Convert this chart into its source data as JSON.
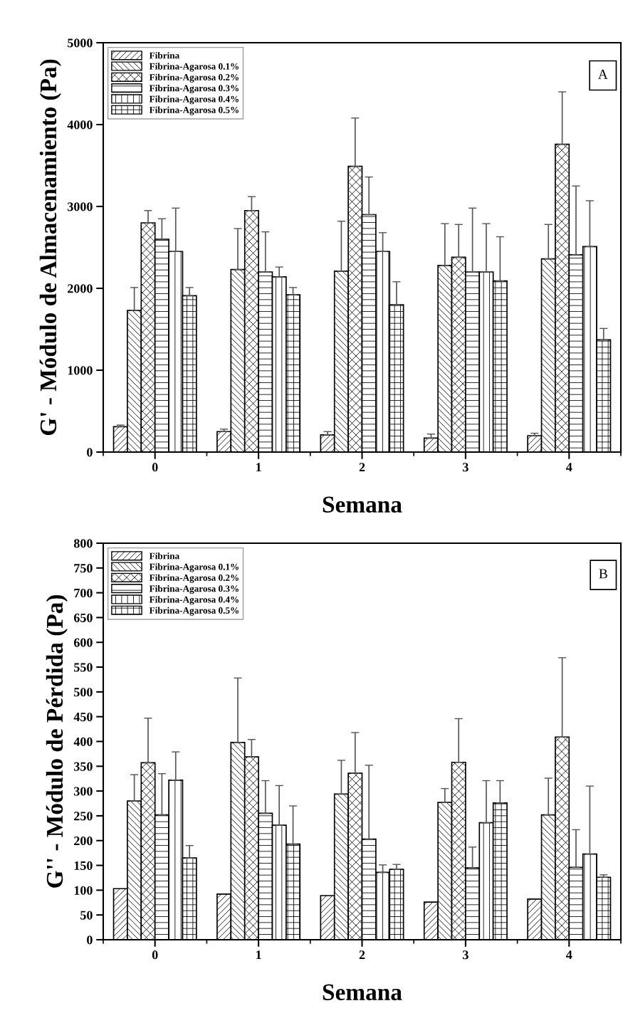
{
  "chart_data": [
    {
      "type": "bar",
      "ylabel": "G' - Módulo de Almacenamiento (Pa)",
      "xlabel": "Semana",
      "categories": [
        "0",
        "1",
        "2",
        "3",
        "4"
      ],
      "ylim": [
        0,
        5000
      ],
      "yticks": [
        0,
        1000,
        2000,
        3000,
        4000,
        5000
      ],
      "legend": "top left",
      "annotations": [
        "A"
      ],
      "series": [
        {
          "name": "Fibrina",
          "color": "#000000",
          "values": [
            310,
            250,
            210,
            170,
            200
          ],
          "errors": [
            [
              310,
              330
            ],
            [
              250,
              280
            ],
            [
              210,
              250
            ],
            [
              170,
              220
            ],
            [
              200,
              230
            ]
          ]
        },
        {
          "name": "Fibrina-Agarosa 0.1%",
          "color": "#000000",
          "values": [
            1730,
            2230,
            2210,
            2280,
            2360
          ],
          "errors": [
            [
              1730,
              2010
            ],
            [
              2230,
              2730
            ],
            [
              2210,
              2820
            ],
            [
              2280,
              2790
            ],
            [
              2360,
              2780
            ]
          ]
        },
        {
          "name": "Fibrina-Agarosa 0.2%",
          "color": "#000000",
          "values": [
            2800,
            2950,
            3490,
            2380,
            3760
          ],
          "errors": [
            [
              2800,
              2950
            ],
            [
              2950,
              3120
            ],
            [
              3490,
              4080
            ],
            [
              2380,
              2780
            ],
            [
              3760,
              4400
            ]
          ]
        },
        {
          "name": "Fibrina-Agarosa 0.3%",
          "color": "#000000",
          "values": [
            2600,
            2200,
            2900,
            2200,
            2410
          ],
          "errors": [
            [
              2600,
              2850
            ],
            [
              2200,
              2690
            ],
            [
              2900,
              3360
            ],
            [
              2200,
              2980
            ],
            [
              2410,
              3250
            ]
          ]
        },
        {
          "name": "Fibrina-Agarosa 0.4%",
          "color": "#000000",
          "values": [
            2450,
            2140,
            2450,
            2200,
            2510
          ],
          "errors": [
            [
              2450,
              2980
            ],
            [
              2140,
              2260
            ],
            [
              2450,
              2680
            ],
            [
              2200,
              2790
            ],
            [
              2510,
              3070
            ]
          ]
        },
        {
          "name": "Fibrina-Agarosa 0.5%",
          "color": "#000000",
          "values": [
            1910,
            1920,
            1800,
            2090,
            1370
          ],
          "errors": [
            [
              1910,
              2010
            ],
            [
              1920,
              2010
            ],
            [
              1800,
              2080
            ],
            [
              2090,
              2630
            ],
            [
              1370,
              1510
            ]
          ]
        }
      ]
    },
    {
      "type": "bar",
      "ylabel": "G'' - Módulo de Pérdida (Pa)",
      "xlabel": "Semana",
      "categories": [
        "0",
        "1",
        "2",
        "3",
        "4"
      ],
      "ylim": [
        0,
        800
      ],
      "yticks": [
        0,
        50,
        100,
        150,
        200,
        250,
        300,
        350,
        400,
        450,
        500,
        550,
        600,
        650,
        700,
        750,
        800
      ],
      "legend": "top left",
      "annotations": [
        "B"
      ],
      "series": [
        {
          "name": "Fibrina",
          "color": "#000000",
          "values": [
            103,
            92,
            89,
            76,
            82
          ]
        },
        {
          "name": "Fibrina-Agarosa 0.1%",
          "color": "#000000",
          "values": [
            280,
            398,
            294,
            277,
            252
          ],
          "errors": [
            [
              280,
              333
            ],
            [
              398,
              528
            ],
            [
              294,
              362
            ],
            [
              277,
              305
            ],
            [
              252,
              326
            ]
          ]
        },
        {
          "name": "Fibrina-Agarosa 0.2%",
          "color": "#000000",
          "values": [
            357,
            369,
            336,
            358,
            409
          ],
          "errors": [
            [
              357,
              447
            ],
            [
              369,
              404
            ],
            [
              336,
              418
            ],
            [
              358,
              446
            ],
            [
              409,
              569
            ]
          ]
        },
        {
          "name": "Fibrina-Agarosa 0.3%",
          "color": "#000000",
          "values": [
            252,
            255,
            203,
            145,
            146
          ],
          "errors": [
            [
              252,
              335
            ],
            [
              255,
              321
            ],
            [
              203,
              352
            ],
            [
              145,
              187
            ],
            [
              146,
              222
            ]
          ]
        },
        {
          "name": "Fibrina-Agarosa 0.4%",
          "color": "#000000",
          "values": [
            322,
            231,
            136,
            236,
            173
          ],
          "errors": [
            [
              322,
              379
            ],
            [
              231,
              311
            ],
            [
              136,
              151
            ],
            [
              236,
              321
            ],
            [
              173,
              310
            ]
          ]
        },
        {
          "name": "Fibrina-Agarosa 0.5%",
          "color": "#000000",
          "values": [
            165,
            193,
            142,
            276,
            126
          ],
          "errors": [
            [
              165,
              190
            ],
            [
              193,
              270
            ],
            [
              142,
              152
            ],
            [
              276,
              321
            ],
            [
              126,
              131
            ]
          ]
        }
      ]
    }
  ]
}
